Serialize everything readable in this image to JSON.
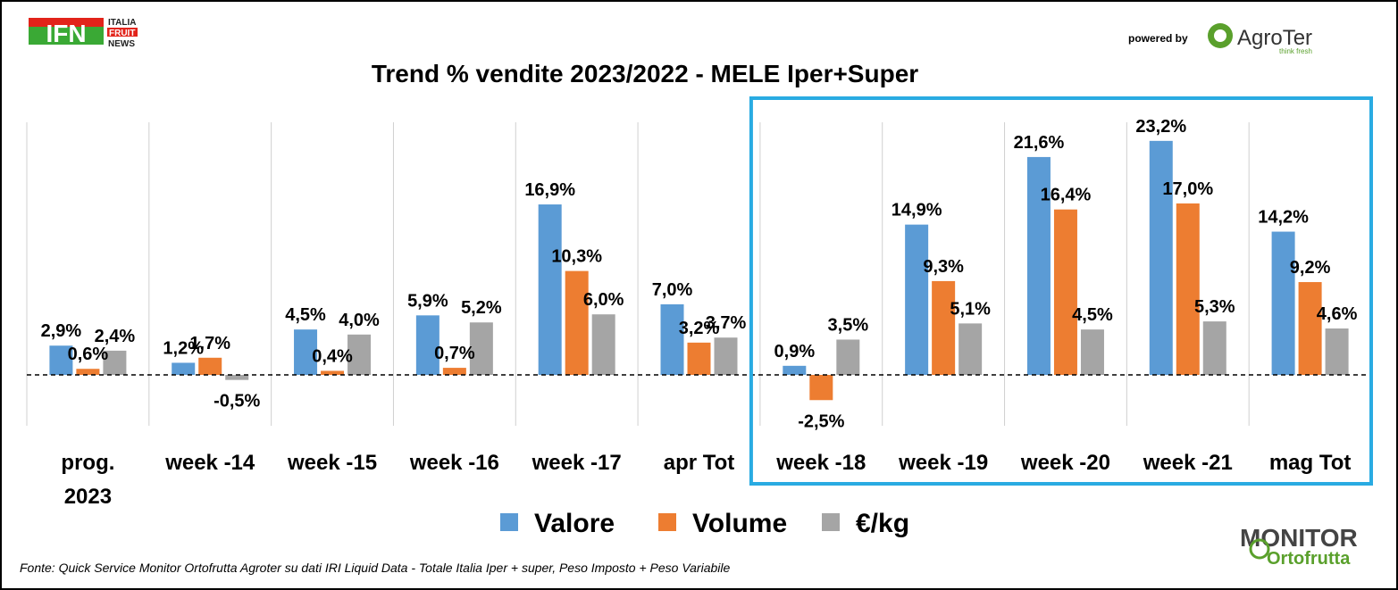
{
  "header": {
    "ifn_logo_letters": "IFN",
    "ifn_logo_line1": "ITALIA",
    "ifn_logo_line2": "FRUIT",
    "ifn_logo_line3": "NEWS",
    "powered_by": "powered by",
    "agroter_name": "AgroTer",
    "agroter_tagline": "think fresh"
  },
  "footer": {
    "source": "Fonte: Quick Service Monitor Ortofrutta Agroter su dati IRI Liquid Data - Totale Italia Iper + super, Peso Imposto + Peso Variabile",
    "monitor_line1": "MONITOR",
    "monitor_line2": "Ortofrutta"
  },
  "colors": {
    "valore": "#5b9bd5",
    "volume": "#ed7d31",
    "eur_kg": "#a5a5a5",
    "highlight_box": "#29abe2"
  },
  "chart_data": {
    "type": "bar",
    "title": "Trend % vendite 2023/2022 - MELE Iper+Super",
    "categories": [
      "prog. 2023",
      "week -14",
      "week -15",
      "week -16",
      "week -17",
      "apr Tot",
      "week -18",
      "week -19",
      "week -20",
      "week -21",
      "mag Tot"
    ],
    "series": [
      {
        "name": "Valore",
        "values": [
          2.9,
          1.2,
          4.5,
          5.9,
          16.9,
          7.0,
          0.9,
          14.9,
          21.6,
          23.2,
          14.2
        ],
        "labels": [
          "2,9%",
          "1,2%",
          "4,5%",
          "5,9%",
          "16,9%",
          "7,0%",
          "0,9%",
          "14,9%",
          "21,6%",
          "23,2%",
          "14,2%"
        ]
      },
      {
        "name": "Volume",
        "values": [
          0.6,
          1.7,
          0.4,
          0.7,
          10.3,
          3.2,
          -2.5,
          9.3,
          16.4,
          17.0,
          9.2
        ],
        "labels": [
          "0,6%",
          "1,7%",
          "0,4%",
          "0,7%",
          "10,3%",
          "3,2%",
          "-2,5%",
          "9,3%",
          "16,4%",
          "17,0%",
          "9,2%"
        ]
      },
      {
        "name": "€/kg",
        "values": [
          2.4,
          -0.5,
          4.0,
          5.2,
          6.0,
          3.7,
          3.5,
          5.1,
          4.5,
          5.3,
          4.6
        ],
        "labels": [
          "2,4%",
          "-0,5%",
          "4,0%",
          "5,2%",
          "6,0%",
          "3,7%",
          "3,5%",
          "5,1%",
          "4,5%",
          "5,3%",
          "4,6%"
        ]
      }
    ],
    "ylim": [
      -5,
      25
    ],
    "grid": "vertical separators between categories",
    "legend": "bottom-center",
    "highlighted_categories": [
      "week -18",
      "week -19",
      "week -20",
      "week -21",
      "mag Tot"
    ]
  }
}
